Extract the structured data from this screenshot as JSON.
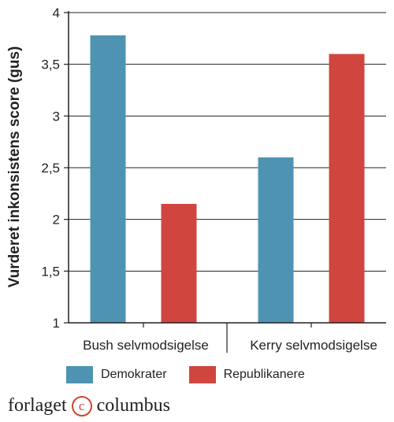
{
  "chart_data": {
    "type": "bar",
    "categories": [
      "Bush selvmodsigelse",
      "Kerry selvmodsigelse"
    ],
    "series": [
      {
        "name": "Demokrater",
        "values": [
          3.78,
          2.6
        ],
        "color": "#4f93b3"
      },
      {
        "name": "Republikanere",
        "values": [
          2.15,
          3.6
        ],
        "color": "#d1453f"
      }
    ],
    "ylabel": "Vurderet inkonsistens score (gus)",
    "xlabel": "",
    "ylim": [
      1,
      4
    ],
    "yticks": [
      "1",
      "1,5",
      "2",
      "2,5",
      "3",
      "3,5",
      "4"
    ],
    "ytick_values": [
      1,
      1.5,
      2,
      2.5,
      3,
      3.5,
      4
    ],
    "grid": true,
    "legend_position": "bottom"
  },
  "brand": {
    "left": "forlaget",
    "mark": "c",
    "right": "columbus"
  }
}
